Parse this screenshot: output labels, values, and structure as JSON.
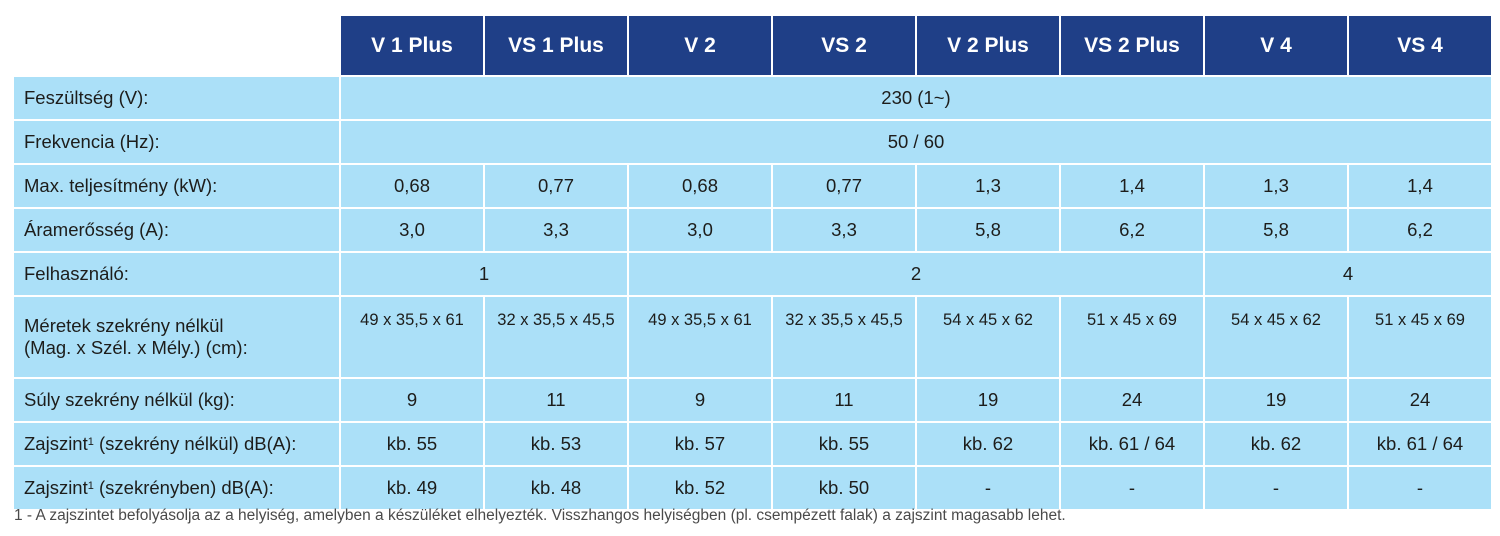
{
  "columns": [
    "V 1 Plus",
    "VS 1 Plus",
    "V 2",
    "VS 2",
    "V 2 Plus",
    "VS 2 Plus",
    "V 4",
    "VS 4"
  ],
  "rows": {
    "voltage": {
      "label": "Feszültség (V):",
      "value": "230 (1~)"
    },
    "frequency": {
      "label": "Frekvencia (Hz):",
      "value": "50 / 60"
    },
    "power": {
      "label": "Max. teljesítmény (kW):",
      "values": [
        "0,68",
        "0,77",
        "0,68",
        "0,77",
        "1,3",
        "1,4",
        "1,3",
        "1,4"
      ]
    },
    "current": {
      "label": "Áramerősség (A):",
      "values": [
        "3,0",
        "3,3",
        "3,0",
        "3,3",
        "5,8",
        "6,2",
        "5,8",
        "6,2"
      ]
    },
    "users": {
      "label": "Felhasználó:",
      "groups": [
        "1",
        "2",
        "4"
      ]
    },
    "dimensions": {
      "label_line1": "Méretek szekrény nélkül",
      "label_line2": "(Mag. x Szél. x Mély.) (cm):",
      "values": [
        "49 x 35,5 x 61",
        "32 x 35,5 x 45,5",
        "49 x 35,5 x 61",
        "32 x 35,5 x 45,5",
        "54 x 45 x 62",
        "51 x 45 x 69",
        "54 x 45 x 62",
        "51 x 45 x 69"
      ]
    },
    "weight": {
      "label": "Súly szekrény nélkül (kg):",
      "values": [
        "9",
        "11",
        "9",
        "11",
        "19",
        "24",
        "19",
        "24"
      ]
    },
    "noise_without": {
      "label_pre": "Zajszint",
      "label_sup": "1",
      "label_post": " (szekrény nélkül) dB(A):",
      "values": [
        "kb. 55",
        "kb. 53",
        "kb. 57",
        "kb. 55",
        "kb. 62",
        "kb. 61 / 64",
        "kb. 62",
        "kb. 61 / 64"
      ]
    },
    "noise_cabinet": {
      "label_pre": "Zajszint",
      "label_sup": "1",
      "label_post": " (szekrényben) dB(A):",
      "values": [
        "kb. 49",
        "kb. 48",
        "kb. 52",
        "kb. 50",
        "-",
        "-",
        "-",
        "-"
      ]
    }
  },
  "footnote": "1 - A zajszintet befolyásolja az a helyiség, amelyben a készüléket elhelyezték. Visszhangos helyiségben (pl. csempézett falak) a zajszint magasabb lehet."
}
